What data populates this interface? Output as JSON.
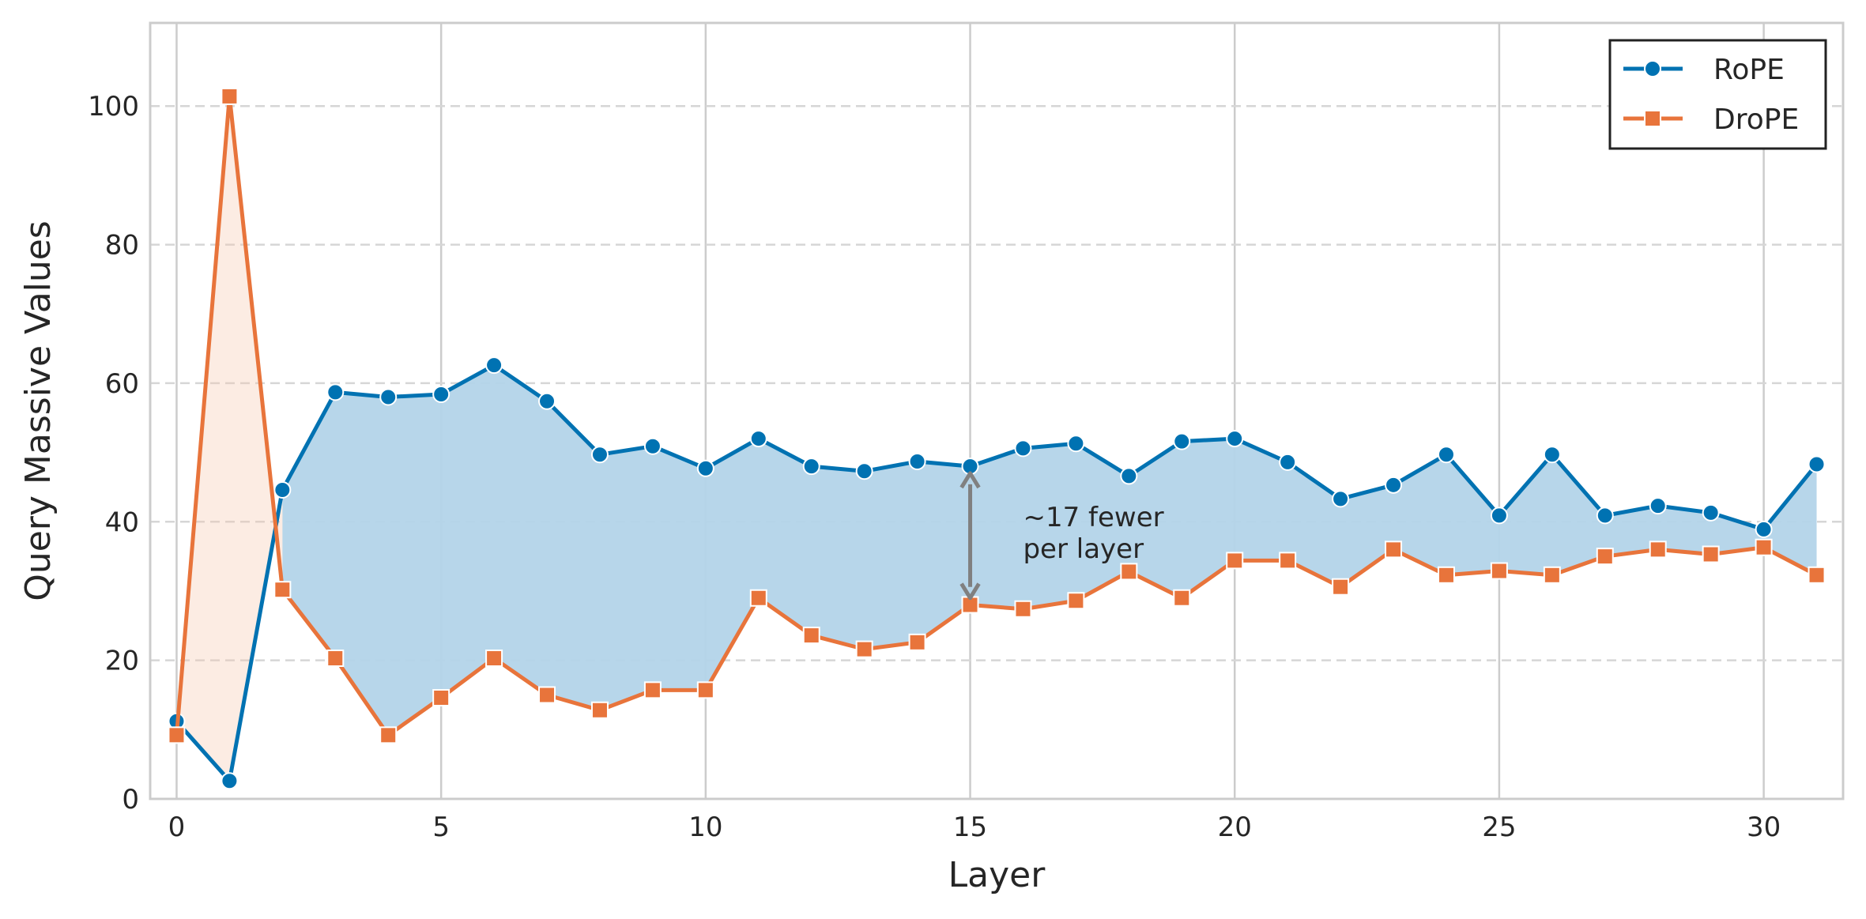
{
  "chart_data": {
    "type": "line",
    "title": "",
    "xlabel": "Layer",
    "ylabel": "Query Massive Values",
    "xlim": [
      -0.5,
      31.5
    ],
    "ylim": [
      0,
      112
    ],
    "xticks": [
      0,
      5,
      10,
      15,
      20,
      25,
      30
    ],
    "yticks": [
      0,
      20,
      40,
      60,
      80,
      100
    ],
    "x": [
      0,
      1,
      2,
      3,
      4,
      5,
      6,
      7,
      8,
      9,
      10,
      11,
      12,
      13,
      14,
      15,
      16,
      17,
      18,
      19,
      20,
      21,
      22,
      23,
      24,
      25,
      26,
      27,
      28,
      29,
      30,
      31
    ],
    "series": [
      {
        "name": "RoPE",
        "color": "#0072B2",
        "marker": "circle",
        "values": [
          11.2,
          2.6,
          44.6,
          58.7,
          58.0,
          58.4,
          62.6,
          57.4,
          49.7,
          50.9,
          47.7,
          52.0,
          48.0,
          47.3,
          48.7,
          48.0,
          50.6,
          51.3,
          46.6,
          51.6,
          52.0,
          48.6,
          43.3,
          45.3,
          49.7,
          40.9,
          49.7,
          40.9,
          42.3,
          41.3,
          38.9,
          48.3
        ]
      },
      {
        "name": "DroPE",
        "color": "#E8743B",
        "marker": "square",
        "values": [
          9.2,
          101.4,
          30.2,
          20.3,
          9.2,
          14.6,
          20.3,
          15.0,
          12.8,
          15.7,
          15.7,
          29.0,
          23.6,
          21.6,
          22.6,
          28.0,
          27.4,
          28.6,
          32.8,
          29.0,
          34.4,
          34.4,
          30.6,
          36.0,
          32.3,
          32.9,
          32.3,
          35.0,
          36.0,
          35.3,
          36.3,
          32.3
        ]
      }
    ],
    "fill_between": {
      "from_x": 2,
      "to_x": 31,
      "color": "#B3D4E9"
    },
    "annotation": {
      "lines": [
        "~17 fewer",
        "per layer"
      ],
      "arrow_x": 15,
      "arrow_from_y": 29,
      "arrow_to_y": 47,
      "color": "#808080"
    },
    "legend": {
      "placement": "top-right",
      "entries": [
        "RoPE",
        "DroPE"
      ]
    },
    "grid": {
      "x": "solid",
      "y": "dashed"
    }
  }
}
